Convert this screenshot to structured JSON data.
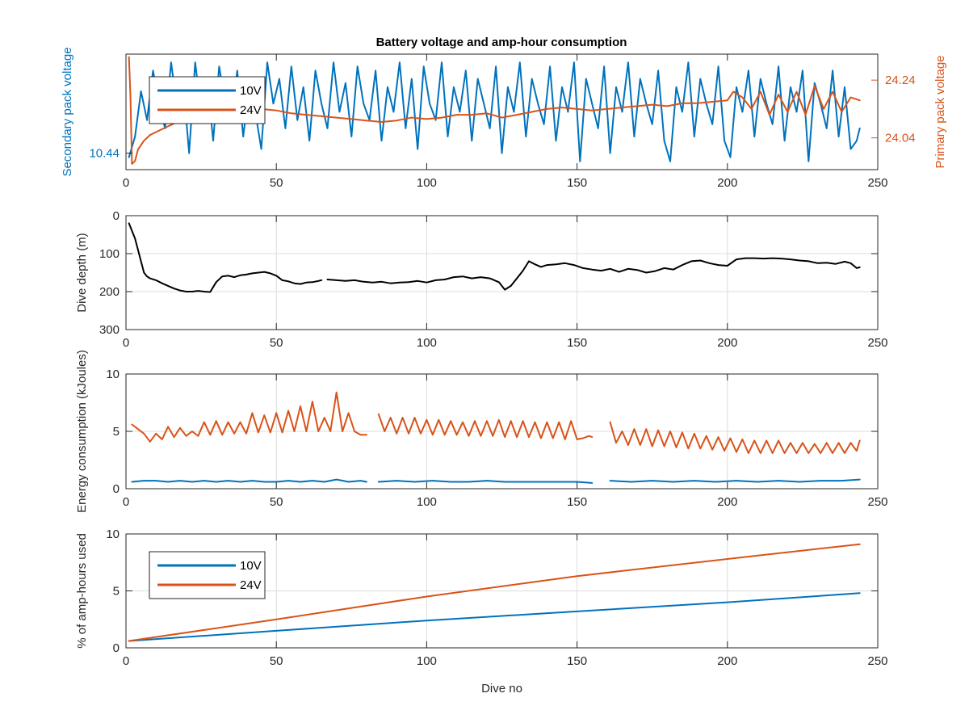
{
  "figure": {
    "title": "Battery voltage and amp-hour consumption",
    "colors": {
      "ten_volt": "#0072BD",
      "twenty_four_volt": "#D95319",
      "depth": "#000000",
      "axis": "#262626",
      "grid": "#dcdcdc"
    }
  },
  "chart_data": [
    {
      "type": "line",
      "id": "voltage",
      "title": "Battery voltage and amp-hour consumption",
      "xlabel": "",
      "ylabel": "Secondary pack voltage",
      "ylabel_right": "Primary pack voltage",
      "xlim": [
        0,
        250
      ],
      "x_ticks": [
        0,
        50,
        100,
        150,
        200,
        250
      ],
      "ylim": [
        10.42,
        10.56
      ],
      "y_ticks": [
        10.44
      ],
      "ylim_right": [
        23.93,
        24.33
      ],
      "y_ticks_right": [
        24.04,
        24.24
      ],
      "grid": false,
      "legend": {
        "position": "top-left",
        "entries": [
          "10V",
          "24V"
        ]
      },
      "series": [
        {
          "name": "10V",
          "axis": "left",
          "x": [
            1,
            3,
            5,
            7,
            9,
            11,
            13,
            15,
            17,
            19,
            21,
            23,
            25,
            27,
            29,
            31,
            33,
            35,
            37,
            39,
            41,
            43,
            45,
            47,
            49,
            51,
            53,
            55,
            57,
            59,
            61,
            63,
            65,
            67,
            69,
            71,
            73,
            75,
            77,
            79,
            81,
            83,
            85,
            87,
            89,
            91,
            93,
            95,
            97,
            99,
            101,
            103,
            105,
            107,
            109,
            111,
            113,
            115,
            117,
            119,
            121,
            123,
            125,
            127,
            129,
            131,
            133,
            135,
            137,
            139,
            141,
            143,
            145,
            147,
            149,
            151,
            153,
            155,
            157,
            159,
            161,
            163,
            165,
            167,
            169,
            171,
            173,
            175,
            177,
            179,
            181,
            183,
            185,
            187,
            189,
            191,
            193,
            195,
            197,
            199,
            201,
            203,
            205,
            207,
            209,
            211,
            213,
            215,
            217,
            219,
            221,
            223,
            225,
            227,
            229,
            231,
            233,
            235,
            237,
            239,
            241,
            243,
            244
          ],
          "values": [
            10.435,
            10.46,
            10.515,
            10.48,
            10.54,
            10.5,
            10.47,
            10.55,
            10.495,
            10.525,
            10.44,
            10.55,
            10.49,
            10.53,
            10.455,
            10.545,
            10.5,
            10.48,
            10.54,
            10.46,
            10.52,
            10.49,
            10.445,
            10.55,
            10.5,
            10.53,
            10.47,
            10.545,
            10.48,
            10.52,
            10.455,
            10.54,
            10.5,
            10.47,
            10.55,
            10.49,
            10.525,
            10.46,
            10.545,
            10.5,
            10.48,
            10.54,
            10.455,
            10.52,
            10.49,
            10.55,
            10.47,
            10.53,
            10.445,
            10.545,
            10.5,
            10.48,
            10.55,
            10.46,
            10.52,
            10.49,
            10.54,
            10.455,
            10.53,
            10.5,
            10.47,
            10.545,
            10.44,
            10.52,
            10.49,
            10.55,
            10.46,
            10.53,
            10.5,
            10.475,
            10.545,
            10.455,
            10.52,
            10.49,
            10.55,
            10.43,
            10.53,
            10.5,
            10.47,
            10.545,
            10.44,
            10.52,
            10.49,
            10.55,
            10.46,
            10.53,
            10.5,
            10.475,
            10.54,
            10.455,
            10.43,
            10.52,
            10.49,
            10.55,
            10.46,
            10.53,
            10.5,
            10.475,
            10.545,
            10.455,
            10.435,
            10.52,
            10.49,
            10.54,
            10.46,
            10.53,
            10.5,
            10.475,
            10.545,
            10.455,
            10.52,
            10.49,
            10.54,
            10.43,
            10.525,
            10.5,
            10.47,
            10.54,
            10.46,
            10.52,
            10.445,
            10.455,
            10.47
          ]
        },
        {
          "name": "24V",
          "axis": "right",
          "x": [
            1,
            1.5,
            2,
            3,
            4,
            6,
            8,
            10,
            12,
            14,
            16,
            18,
            20,
            25,
            30,
            35,
            40,
            45,
            50,
            55,
            60,
            65,
            70,
            75,
            80,
            85,
            90,
            95,
            100,
            105,
            110,
            115,
            120,
            125,
            130,
            135,
            140,
            145,
            150,
            155,
            160,
            165,
            170,
            175,
            180,
            185,
            190,
            195,
            200,
            202,
            205,
            208,
            211,
            214,
            217,
            220,
            223,
            226,
            229,
            232,
            235,
            238,
            241,
            244
          ],
          "values": [
            24.32,
            24.18,
            23.95,
            23.96,
            24.0,
            24.03,
            24.05,
            24.06,
            24.07,
            24.08,
            24.09,
            24.1,
            24.11,
            24.12,
            24.13,
            24.135,
            24.14,
            24.14,
            24.135,
            24.125,
            24.12,
            24.115,
            24.11,
            24.105,
            24.1,
            24.095,
            24.1,
            24.11,
            24.105,
            24.11,
            24.12,
            24.12,
            24.125,
            24.11,
            24.12,
            24.13,
            24.14,
            24.145,
            24.14,
            24.135,
            24.14,
            24.145,
            24.15,
            24.155,
            24.15,
            24.16,
            24.16,
            24.165,
            24.17,
            24.2,
            24.18,
            24.14,
            24.2,
            24.12,
            24.19,
            24.13,
            24.2,
            24.12,
            24.22,
            24.14,
            24.2,
            24.13,
            24.18,
            24.17
          ]
        }
      ]
    },
    {
      "type": "line",
      "id": "depth",
      "xlabel": "",
      "ylabel": "Dive depth (m)",
      "xlim": [
        0,
        250
      ],
      "x_ticks": [
        0,
        50,
        100,
        150,
        200,
        250
      ],
      "ylim": [
        0,
        300
      ],
      "y_reversed": true,
      "y_ticks": [
        0,
        100,
        200,
        300
      ],
      "grid": true,
      "series": [
        {
          "name": "",
          "x": [
            1,
            2,
            3,
            4,
            5,
            6,
            7,
            8,
            10,
            12,
            14,
            16,
            18,
            20,
            22,
            24,
            26,
            28,
            30,
            32,
            34,
            36,
            38,
            40,
            42,
            44,
            46,
            48,
            50,
            52,
            54,
            56,
            58,
            60,
            62,
            64,
            65,
            null,
            67,
            70,
            73,
            76,
            79,
            82,
            85,
            88,
            91,
            94,
            97,
            100,
            103,
            106,
            109,
            112,
            115,
            118,
            121,
            124,
            126,
            128,
            130,
            132,
            134,
            136,
            138,
            140,
            143,
            146,
            149,
            152,
            155,
            158,
            161,
            164,
            167,
            170,
            173,
            176,
            179,
            182,
            185,
            188,
            191,
            194,
            197,
            200,
            203,
            206,
            209,
            212,
            215,
            218,
            221,
            224,
            227,
            230,
            233,
            236,
            239,
            241,
            243,
            244
          ],
          "values": [
            20,
            40,
            60,
            90,
            120,
            150,
            160,
            165,
            170,
            178,
            185,
            192,
            197,
            200,
            200,
            198,
            200,
            201,
            175,
            160,
            158,
            162,
            157,
            155,
            152,
            150,
            148,
            152,
            158,
            170,
            173,
            178,
            180,
            176,
            175,
            172,
            170,
            null,
            168,
            170,
            172,
            170,
            174,
            176,
            174,
            178,
            176,
            175,
            172,
            176,
            170,
            168,
            162,
            160,
            165,
            162,
            165,
            175,
            195,
            185,
            165,
            145,
            120,
            128,
            135,
            130,
            128,
            125,
            130,
            138,
            142,
            145,
            140,
            148,
            140,
            143,
            150,
            146,
            138,
            142,
            130,
            120,
            118,
            125,
            130,
            132,
            115,
            112,
            112,
            113,
            112,
            113,
            115,
            118,
            120,
            125,
            124,
            127,
            121,
            125,
            138,
            136
          ]
        }
      ]
    },
    {
      "type": "line",
      "id": "energy",
      "xlabel": "",
      "ylabel": "Energy consumption (kJoules)",
      "xlim": [
        0,
        250
      ],
      "x_ticks": [
        0,
        50,
        100,
        150,
        200,
        250
      ],
      "ylim": [
        0,
        10
      ],
      "y_ticks": [
        0,
        5,
        10
      ],
      "grid": true,
      "series": [
        {
          "name": "24V",
          "x": [
            2,
            4,
            6,
            8,
            10,
            12,
            14,
            16,
            18,
            20,
            22,
            24,
            26,
            28,
            30,
            32,
            34,
            36,
            38,
            40,
            42,
            44,
            46,
            48,
            50,
            52,
            54,
            56,
            58,
            60,
            62,
            64,
            66,
            68,
            70,
            72,
            74,
            76,
            78,
            80,
            null,
            84,
            86,
            88,
            90,
            92,
            94,
            96,
            98,
            100,
            102,
            104,
            106,
            108,
            110,
            112,
            114,
            116,
            118,
            120,
            122,
            124,
            126,
            128,
            130,
            132,
            134,
            136,
            138,
            140,
            142,
            144,
            146,
            148,
            150,
            152,
            154,
            155,
            null,
            161,
            163,
            165,
            167,
            169,
            171,
            173,
            175,
            177,
            179,
            181,
            183,
            185,
            187,
            189,
            191,
            193,
            195,
            197,
            199,
            201,
            203,
            205,
            207,
            209,
            211,
            213,
            215,
            217,
            219,
            221,
            223,
            225,
            227,
            229,
            231,
            233,
            235,
            237,
            239,
            241,
            243,
            244
          ],
          "values": [
            5.6,
            5.2,
            4.8,
            4.1,
            4.8,
            4.3,
            5.4,
            4.5,
            5.3,
            4.6,
            5.0,
            4.6,
            5.8,
            4.7,
            5.9,
            4.7,
            5.8,
            4.8,
            5.8,
            4.8,
            6.6,
            4.9,
            6.4,
            4.9,
            6.6,
            4.9,
            6.8,
            5.0,
            7.2,
            5.0,
            7.6,
            5.0,
            6.2,
            5.0,
            8.4,
            5.0,
            6.6,
            5.0,
            4.7,
            4.7,
            null,
            6.5,
            5.0,
            6.2,
            4.8,
            6.2,
            4.8,
            6.2,
            4.8,
            6.0,
            4.7,
            6.0,
            4.7,
            5.9,
            4.7,
            5.8,
            4.6,
            5.9,
            4.6,
            5.9,
            4.6,
            6.0,
            4.5,
            5.9,
            4.5,
            5.9,
            4.5,
            5.8,
            4.4,
            5.8,
            4.4,
            5.8,
            4.3,
            5.9,
            4.3,
            4.4,
            4.6,
            4.5,
            null,
            5.8,
            4.0,
            5.0,
            3.8,
            5.2,
            3.8,
            5.2,
            3.7,
            5.1,
            3.7,
            5.0,
            3.6,
            4.9,
            3.5,
            4.8,
            3.5,
            4.6,
            3.4,
            4.5,
            3.3,
            4.4,
            3.2,
            4.3,
            3.1,
            4.2,
            3.1,
            4.2,
            3.1,
            4.2,
            3.1,
            4.0,
            3.1,
            4.0,
            3.1,
            3.9,
            3.1,
            4.0,
            3.1,
            4.0,
            3.1,
            4.0,
            3.3,
            4.2
          ]
        },
        {
          "name": "10V",
          "x": [
            2,
            6,
            10,
            14,
            18,
            22,
            26,
            30,
            34,
            38,
            42,
            46,
            50,
            54,
            58,
            62,
            66,
            70,
            74,
            78,
            80,
            null,
            84,
            90,
            96,
            102,
            108,
            114,
            120,
            126,
            132,
            138,
            144,
            150,
            155,
            null,
            161,
            168,
            175,
            182,
            189,
            196,
            203,
            210,
            217,
            224,
            231,
            238,
            244
          ],
          "values": [
            0.6,
            0.7,
            0.7,
            0.6,
            0.7,
            0.6,
            0.7,
            0.6,
            0.7,
            0.6,
            0.7,
            0.6,
            0.6,
            0.7,
            0.6,
            0.7,
            0.6,
            0.8,
            0.6,
            0.7,
            0.6,
            null,
            0.6,
            0.7,
            0.6,
            0.7,
            0.6,
            0.6,
            0.7,
            0.6,
            0.6,
            0.6,
            0.6,
            0.6,
            0.5,
            null,
            0.7,
            0.6,
            0.7,
            0.6,
            0.7,
            0.6,
            0.7,
            0.6,
            0.7,
            0.6,
            0.7,
            0.7,
            0.8
          ]
        }
      ]
    },
    {
      "type": "line",
      "id": "amphours",
      "xlabel": "Dive no",
      "ylabel": "% of amp-hours used",
      "xlim": [
        0,
        250
      ],
      "x_ticks": [
        0,
        50,
        100,
        150,
        200,
        250
      ],
      "ylim": [
        0,
        10
      ],
      "y_ticks": [
        0,
        5,
        10
      ],
      "grid": true,
      "legend": {
        "position": "bottom-left",
        "entries": [
          "10V",
          "24V"
        ]
      },
      "series": [
        {
          "name": "10V",
          "x": [
            1,
            50,
            100,
            150,
            200,
            244
          ],
          "values": [
            0.6,
            1.5,
            2.4,
            3.2,
            4.0,
            4.8
          ]
        },
        {
          "name": "24V",
          "x": [
            1,
            50,
            100,
            150,
            200,
            244
          ],
          "values": [
            0.6,
            2.5,
            4.5,
            6.3,
            7.8,
            9.1
          ]
        }
      ]
    }
  ]
}
